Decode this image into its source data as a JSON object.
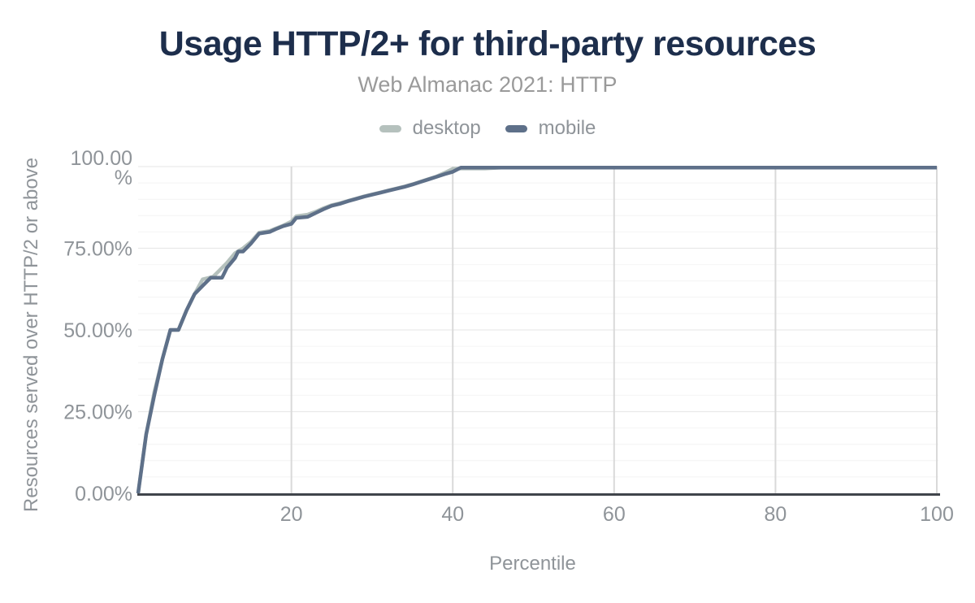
{
  "header": {
    "title": "Usage HTTP/2+ for third-party resources",
    "subtitle": "Web Almanac 2021: HTTP"
  },
  "legend": {
    "items": [
      {
        "label": "desktop",
        "color": "#b5c1bd"
      },
      {
        "label": "mobile",
        "color": "#5e7089"
      }
    ]
  },
  "chart_data": {
    "type": "line",
    "title": "Usage HTTP/2+ for third-party resources",
    "subtitle": "Web Almanac 2021: HTTP",
    "xlabel": "Percentile",
    "ylabel": "Resources served over HTTP/2 or above",
    "xlim": [
      1,
      100
    ],
    "ylim": [
      0,
      100
    ],
    "x_ticks": [
      20,
      40,
      60,
      80,
      100
    ],
    "y_ticks": [
      {
        "value": 0,
        "lines": [
          "0.00%"
        ]
      },
      {
        "value": 25,
        "lines": [
          "25.00%"
        ]
      },
      {
        "value": 50,
        "lines": [
          "50.00%"
        ]
      },
      {
        "value": 75,
        "lines": [
          "75.00%"
        ]
      },
      {
        "value": 100,
        "lines": [
          "100.00",
          "%"
        ]
      }
    ],
    "grid": {
      "vertical_at": [
        20,
        40,
        60,
        80,
        100
      ],
      "major_horizontal_at": [
        25,
        50,
        75,
        100
      ],
      "minor_horizontal_step": 5
    },
    "legend_position": "top",
    "series": [
      {
        "name": "desktop",
        "color": "#b5c1bd",
        "points": [
          [
            1,
            0
          ],
          [
            2,
            18
          ],
          [
            3,
            31
          ],
          [
            4,
            41
          ],
          [
            5,
            50
          ],
          [
            6,
            50
          ],
          [
            7,
            56
          ],
          [
            8,
            61
          ],
          [
            9,
            65.5
          ],
          [
            10.3,
            66.3
          ],
          [
            11,
            68
          ],
          [
            12,
            70.5
          ],
          [
            13,
            73.5
          ],
          [
            14,
            75
          ],
          [
            15,
            77
          ],
          [
            16,
            79.8
          ],
          [
            17.3,
            80.3
          ],
          [
            18,
            81
          ],
          [
            19,
            82
          ],
          [
            20,
            83.2
          ],
          [
            20.6,
            84.8
          ],
          [
            22,
            85.3
          ],
          [
            23,
            86.2
          ],
          [
            24,
            87.3
          ],
          [
            25,
            88.2
          ],
          [
            26,
            88.8
          ],
          [
            27,
            89.5
          ],
          [
            28,
            90.2
          ],
          [
            29,
            90.9
          ],
          [
            30,
            91.5
          ],
          [
            31,
            92.1
          ],
          [
            32,
            92.7
          ],
          [
            33,
            93.3
          ],
          [
            34,
            93.9
          ],
          [
            35,
            94.6
          ],
          [
            36,
            95.4
          ],
          [
            37,
            96.2
          ],
          [
            38,
            97
          ],
          [
            39,
            98.1
          ],
          [
            40,
            99.3
          ],
          [
            41,
            99.4
          ],
          [
            44,
            99.4
          ],
          [
            46,
            99.7
          ],
          [
            100,
            99.7
          ]
        ]
      },
      {
        "name": "mobile",
        "color": "#5e7089",
        "points": [
          [
            1,
            0
          ],
          [
            2,
            18
          ],
          [
            3,
            30
          ],
          [
            4,
            41
          ],
          [
            5,
            50
          ],
          [
            6,
            50
          ],
          [
            7,
            56
          ],
          [
            8,
            61
          ],
          [
            9,
            63.5
          ],
          [
            10,
            66
          ],
          [
            11.4,
            66
          ],
          [
            12,
            69
          ],
          [
            13,
            72
          ],
          [
            13.4,
            74
          ],
          [
            14,
            74
          ],
          [
            15,
            76.5
          ],
          [
            16,
            79.5
          ],
          [
            17.3,
            80
          ],
          [
            18,
            80.8
          ],
          [
            19,
            81.8
          ],
          [
            20,
            82.5
          ],
          [
            20.6,
            84.3
          ],
          [
            22,
            84.6
          ],
          [
            23,
            85.8
          ],
          [
            24,
            87
          ],
          [
            25,
            88
          ],
          [
            26,
            88.6
          ],
          [
            27,
            89.4
          ],
          [
            28,
            90.1
          ],
          [
            29,
            90.8
          ],
          [
            30,
            91.4
          ],
          [
            31,
            92
          ],
          [
            32,
            92.6
          ],
          [
            33,
            93.2
          ],
          [
            34,
            93.8
          ],
          [
            35,
            94.5
          ],
          [
            36,
            95.3
          ],
          [
            37,
            96.1
          ],
          [
            38,
            96.9
          ],
          [
            39,
            97.7
          ],
          [
            40,
            98.4
          ],
          [
            41,
            99.7
          ],
          [
            100,
            99.7
          ]
        ]
      }
    ]
  },
  "colors": {
    "background": "#ffffff",
    "title": "#1d2e4c",
    "subtitle": "#9a9a9a",
    "axis_text": "#8f9499",
    "axis_line": "#40444b",
    "grid_vertical": "#d9d9d9",
    "grid_major": "#e9e9e9",
    "grid_minor": "#f4f4f4"
  }
}
